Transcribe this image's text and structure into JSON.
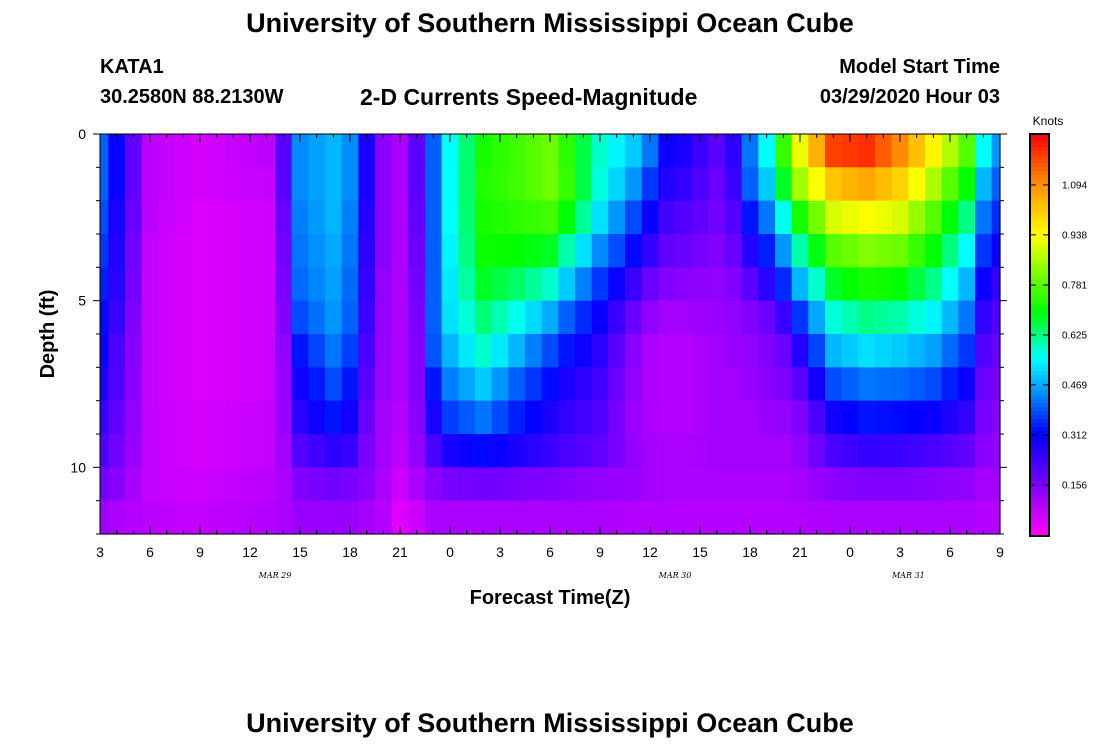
{
  "header": {
    "title": "University of Southern Mississippi Ocean Cube",
    "station": "KATA1",
    "coords": "30.2580N 88.2130W",
    "subtitle": "2-D Currents Speed-Magnitude",
    "start_label": "Model Start Time",
    "start_value": "03/29/2020 Hour 03"
  },
  "footer": {
    "title": "University of Southern Mississippi Ocean Cube"
  },
  "chart_data": {
    "type": "heatmap",
    "title": "2-D Currents Speed-Magnitude",
    "xlabel": "Forecast Time(Z)",
    "ylabel": "Depth (ft)",
    "x_hours": [
      3,
      4,
      5,
      6,
      7,
      8,
      9,
      10,
      11,
      12,
      13,
      14,
      15,
      16,
      17,
      18,
      19,
      20,
      21,
      22,
      23,
      24,
      25,
      26,
      27,
      28,
      29,
      30,
      31,
      32,
      33,
      34,
      35,
      36,
      37,
      38,
      39,
      40,
      41,
      42,
      43,
      44,
      45,
      46,
      47,
      48,
      49,
      50,
      51,
      52,
      53,
      54,
      55,
      56,
      57
    ],
    "x_tick_labels": [
      "3",
      "6",
      "9",
      "12",
      "15",
      "18",
      "21",
      "0",
      "3",
      "6",
      "9",
      "12",
      "15",
      "18",
      "21",
      "0",
      "3",
      "6",
      "9"
    ],
    "date_labels": [
      "MAR 29",
      "MAR 30",
      "MAR 31"
    ],
    "y_ticks": [
      0,
      5,
      10
    ],
    "y_range": [
      0,
      12
    ],
    "depths": [
      0.5,
      1.5,
      2.5,
      3.5,
      4.5,
      5.5,
      6.5,
      7.5,
      8.5,
      9.5,
      10.5,
      11.5
    ],
    "colorbar": {
      "label": "Knots",
      "ticks": [
        "0.156",
        "0.312",
        "0.469",
        "0.625",
        "0.781",
        "0.938",
        "1.094"
      ],
      "range": [
        0,
        1.25
      ]
    },
    "keyframes": [
      {
        "h": 3,
        "v": [
          0.4,
          0.4,
          0.38,
          0.36,
          0.34,
          0.32,
          0.3,
          0.28,
          0.25,
          0.22,
          0.17,
          0.12
        ]
      },
      {
        "h": 4,
        "v": [
          0.3,
          0.3,
          0.28,
          0.27,
          0.26,
          0.24,
          0.22,
          0.21,
          0.19,
          0.17,
          0.14,
          0.1
        ]
      },
      {
        "h": 6,
        "v": [
          0.08,
          0.08,
          0.08,
          0.07,
          0.07,
          0.07,
          0.07,
          0.07,
          0.07,
          0.07,
          0.07,
          0.08
        ]
      },
      {
        "h": 9,
        "v": [
          0.05,
          0.05,
          0.04,
          0.04,
          0.04,
          0.04,
          0.04,
          0.04,
          0.05,
          0.05,
          0.06,
          0.07
        ]
      },
      {
        "h": 13,
        "v": [
          0.08,
          0.07,
          0.06,
          0.06,
          0.06,
          0.06,
          0.06,
          0.06,
          0.07,
          0.07,
          0.08,
          0.09
        ]
      },
      {
        "h": 14,
        "v": [
          0.2,
          0.2,
          0.18,
          0.17,
          0.16,
          0.15,
          0.13,
          0.12,
          0.12,
          0.11,
          0.1,
          0.1
        ]
      },
      {
        "h": 15,
        "v": [
          0.44,
          0.44,
          0.43,
          0.42,
          0.41,
          0.38,
          0.33,
          0.29,
          0.26,
          0.21,
          0.15,
          0.12
        ]
      },
      {
        "h": 17,
        "v": [
          0.48,
          0.48,
          0.48,
          0.47,
          0.46,
          0.45,
          0.42,
          0.38,
          0.33,
          0.26,
          0.17,
          0.12
        ]
      },
      {
        "h": 18,
        "v": [
          0.44,
          0.44,
          0.43,
          0.42,
          0.41,
          0.4,
          0.37,
          0.33,
          0.29,
          0.24,
          0.16,
          0.12
        ]
      },
      {
        "h": 19,
        "v": [
          0.28,
          0.28,
          0.27,
          0.26,
          0.25,
          0.24,
          0.22,
          0.2,
          0.18,
          0.16,
          0.14,
          0.11
        ]
      },
      {
        "h": 20,
        "v": [
          0.14,
          0.14,
          0.14,
          0.14,
          0.13,
          0.13,
          0.12,
          0.12,
          0.11,
          0.11,
          0.1,
          0.09
        ]
      },
      {
        "h": 21,
        "v": [
          0.1,
          0.1,
          0.1,
          0.1,
          0.1,
          0.1,
          0.1,
          0.1,
          0.09,
          0.08,
          0.06,
          0.04
        ]
      },
      {
        "h": 22,
        "v": [
          0.2,
          0.2,
          0.19,
          0.18,
          0.17,
          0.16,
          0.15,
          0.15,
          0.14,
          0.13,
          0.1,
          0.06
        ]
      },
      {
        "h": 23,
        "v": [
          0.4,
          0.4,
          0.4,
          0.4,
          0.4,
          0.4,
          0.39,
          0.33,
          0.28,
          0.22,
          0.14,
          0.1
        ]
      },
      {
        "h": 24,
        "v": [
          0.55,
          0.55,
          0.55,
          0.54,
          0.53,
          0.52,
          0.48,
          0.43,
          0.37,
          0.28,
          0.16,
          0.1
        ]
      },
      {
        "h": 26,
        "v": [
          0.72,
          0.73,
          0.72,
          0.71,
          0.68,
          0.63,
          0.58,
          0.5,
          0.42,
          0.32,
          0.17,
          0.1
        ]
      },
      {
        "h": 28,
        "v": [
          0.76,
          0.76,
          0.74,
          0.7,
          0.64,
          0.56,
          0.48,
          0.4,
          0.34,
          0.28,
          0.16,
          0.1
        ]
      },
      {
        "h": 30,
        "v": [
          0.8,
          0.8,
          0.76,
          0.68,
          0.58,
          0.47,
          0.38,
          0.32,
          0.28,
          0.24,
          0.15,
          0.1
        ]
      },
      {
        "h": 31,
        "v": [
          0.74,
          0.75,
          0.7,
          0.6,
          0.5,
          0.4,
          0.33,
          0.28,
          0.25,
          0.22,
          0.14,
          0.1
        ]
      },
      {
        "h": 33,
        "v": [
          0.58,
          0.57,
          0.52,
          0.44,
          0.36,
          0.3,
          0.26,
          0.23,
          0.21,
          0.19,
          0.13,
          0.1
        ]
      },
      {
        "h": 35,
        "v": [
          0.5,
          0.45,
          0.38,
          0.32,
          0.24,
          0.18,
          0.14,
          0.13,
          0.12,
          0.13,
          0.12,
          0.09
        ]
      },
      {
        "h": 36,
        "v": [
          0.42,
          0.36,
          0.3,
          0.25,
          0.18,
          0.13,
          0.1,
          0.1,
          0.1,
          0.11,
          0.11,
          0.09
        ]
      },
      {
        "h": 37,
        "v": [
          0.3,
          0.27,
          0.23,
          0.19,
          0.15,
          0.11,
          0.09,
          0.09,
          0.09,
          0.1,
          0.1,
          0.09
        ]
      },
      {
        "h": 38,
        "v": [
          0.28,
          0.25,
          0.21,
          0.18,
          0.14,
          0.11,
          0.09,
          0.09,
          0.09,
          0.1,
          0.1,
          0.09
        ]
      },
      {
        "h": 40,
        "v": [
          0.2,
          0.18,
          0.17,
          0.15,
          0.13,
          0.12,
          0.11,
          0.11,
          0.11,
          0.11,
          0.1,
          0.09
        ]
      },
      {
        "h": 41,
        "v": [
          0.26,
          0.24,
          0.21,
          0.18,
          0.15,
          0.13,
          0.12,
          0.11,
          0.11,
          0.11,
          0.1,
          0.09
        ]
      },
      {
        "h": 42,
        "v": [
          0.42,
          0.4,
          0.33,
          0.27,
          0.2,
          0.15,
          0.13,
          0.12,
          0.11,
          0.11,
          0.1,
          0.09
        ]
      },
      {
        "h": 43,
        "v": [
          0.55,
          0.5,
          0.42,
          0.34,
          0.26,
          0.18,
          0.15,
          0.14,
          0.12,
          0.11,
          0.1,
          0.09
        ]
      },
      {
        "h": 44,
        "v": [
          0.75,
          0.68,
          0.56,
          0.45,
          0.35,
          0.24,
          0.18,
          0.15,
          0.13,
          0.11,
          0.1,
          0.09
        ]
      },
      {
        "h": 45,
        "v": [
          0.92,
          0.85,
          0.72,
          0.6,
          0.48,
          0.36,
          0.27,
          0.2,
          0.15,
          0.13,
          0.11,
          0.09
        ]
      },
      {
        "h": 47,
        "v": [
          1.18,
          1.02,
          0.9,
          0.78,
          0.68,
          0.57,
          0.48,
          0.38,
          0.29,
          0.22,
          0.14,
          0.1
        ]
      },
      {
        "h": 49,
        "v": [
          1.2,
          1.06,
          0.94,
          0.82,
          0.72,
          0.62,
          0.52,
          0.42,
          0.33,
          0.25,
          0.15,
          0.1
        ]
      },
      {
        "h": 51,
        "v": [
          1.1,
          1.0,
          0.9,
          0.8,
          0.7,
          0.6,
          0.5,
          0.41,
          0.32,
          0.24,
          0.15,
          0.1
        ]
      },
      {
        "h": 53,
        "v": [
          0.95,
          0.86,
          0.78,
          0.7,
          0.62,
          0.54,
          0.46,
          0.38,
          0.3,
          0.22,
          0.14,
          0.1
        ]
      },
      {
        "h": 55,
        "v": [
          0.78,
          0.7,
          0.62,
          0.55,
          0.48,
          0.42,
          0.36,
          0.3,
          0.25,
          0.19,
          0.13,
          0.1
        ]
      },
      {
        "h": 56,
        "v": [
          0.55,
          0.48,
          0.42,
          0.36,
          0.3,
          0.25,
          0.21,
          0.18,
          0.16,
          0.14,
          0.11,
          0.09
        ]
      },
      {
        "h": 57,
        "v": [
          0.45,
          0.4,
          0.35,
          0.3,
          0.25,
          0.21,
          0.18,
          0.16,
          0.14,
          0.13,
          0.11,
          0.09
        ]
      }
    ]
  }
}
